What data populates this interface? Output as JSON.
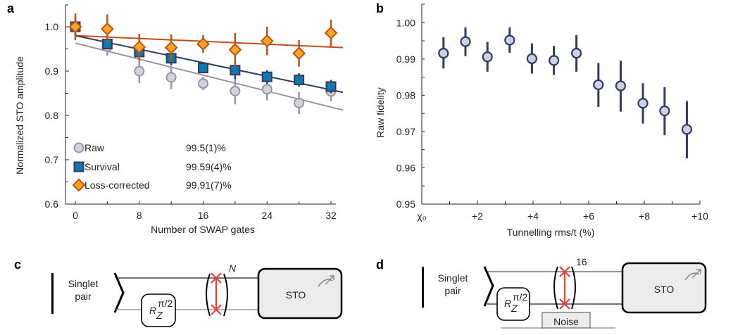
{
  "chart_data": [
    {
      "panel": "a",
      "type": "scatter",
      "xlabel": "Number of SWAP gates",
      "ylabel": "Normalized STO amplitude",
      "xlim": [
        -2,
        34
      ],
      "ylim": [
        0.6,
        1.05
      ],
      "xticks": [
        0,
        8,
        16,
        24,
        32
      ],
      "xtick_labels": [
        "0",
        "8",
        "16",
        "24",
        "32"
      ],
      "yticks": [
        0.6,
        0.7,
        0.8,
        0.9,
        1.0
      ],
      "ytick_labels": [
        "0.6",
        "0.7",
        "0.8",
        "0.9",
        "1.0"
      ],
      "grid": false,
      "legend_position": "bottom-left",
      "series": [
        {
          "name": "Raw",
          "marker": "circle",
          "value_label": "99.5(1)%",
          "color": "#d3d3d6",
          "edge_color": "#9496a6",
          "x": [
            0,
            4,
            8,
            12,
            16,
            20,
            24,
            28,
            32
          ],
          "y": [
            1.0,
            0.955,
            0.9,
            0.886,
            0.872,
            0.855,
            0.859,
            0.828,
            0.854
          ],
          "err": [
            0.025,
            0.02,
            0.027,
            0.027,
            0.015,
            0.03,
            0.025,
            0.025,
            0.022
          ],
          "fit": {
            "x": [
              0,
              33.5
            ],
            "y": [
              0.963,
              0.812
            ],
            "color": "#9496a6"
          }
        },
        {
          "name": "Survival",
          "marker": "square",
          "value_label": "99.59(4)%",
          "color": "#0f78b0",
          "edge_color": "#333a5a",
          "x": [
            0,
            4,
            8,
            12,
            16,
            20,
            24,
            28,
            32
          ],
          "y": [
            1.0,
            0.961,
            0.943,
            0.929,
            0.907,
            0.902,
            0.887,
            0.88,
            0.865
          ],
          "err": [
            0.02,
            0.01,
            0.015,
            0.015,
            0.01,
            0.02,
            0.015,
            0.015,
            0.015
          ],
          "fit": {
            "x": [
              0,
              33.5
            ],
            "y": [
              0.98,
              0.852
            ],
            "color": "#333a5a"
          }
        },
        {
          "name": "Loss-corrected",
          "marker": "diamond",
          "value_label": "99.91(7)%",
          "color": "#f5a623",
          "edge_color": "#c0501a",
          "x": [
            0,
            4,
            8,
            12,
            16,
            20,
            24,
            28,
            32
          ],
          "y": [
            1.0,
            0.995,
            0.954,
            0.953,
            0.961,
            0.948,
            0.968,
            0.94,
            0.986
          ],
          "err": [
            0.03,
            0.033,
            0.03,
            0.03,
            0.02,
            0.038,
            0.032,
            0.03,
            0.03
          ],
          "fit": {
            "x": [
              0,
              33.5
            ],
            "y": [
              0.98,
              0.953
            ],
            "color": "#c0501a"
          }
        }
      ]
    },
    {
      "panel": "b",
      "type": "scatter",
      "xlabel": "Tunnelling rms/t (%)",
      "ylabel": "Raw fidelity",
      "xlim": [
        0,
        10
      ],
      "ylim": [
        0.95,
        1.005
      ],
      "xticks": [
        0,
        2,
        4,
        6,
        8,
        10
      ],
      "xtick_labels": [
        "χ₀",
        "+2",
        "+4",
        "+6",
        "+8",
        "+10"
      ],
      "yticks": [
        0.95,
        0.96,
        0.97,
        0.98,
        0.99,
        1.0
      ],
      "ytick_labels": [
        "0.95",
        "0.96",
        "0.97",
        "0.98",
        "0.99",
        "1.00"
      ],
      "grid": false,
      "series": [
        {
          "name": "Raw fidelity",
          "marker": "circle",
          "color": "#cfcfe6",
          "edge_color": "#333a5a",
          "x": [
            0.78,
            1.57,
            2.36,
            3.16,
            3.96,
            4.75,
            5.56,
            6.35,
            7.15,
            7.95,
            8.73,
            9.53
          ],
          "y": [
            0.9916,
            0.9948,
            0.9906,
            0.9952,
            0.9901,
            0.9896,
            0.9916,
            0.9829,
            0.9826,
            0.9778,
            0.9757,
            0.9706
          ],
          "y_low": [
            0.9874,
            0.9908,
            0.9865,
            0.9917,
            0.986,
            0.9856,
            0.9865,
            0.9768,
            0.9755,
            0.9722,
            0.969,
            0.9626
          ],
          "y_high": [
            0.996,
            0.9987,
            0.9947,
            0.9987,
            0.9943,
            0.9936,
            0.9966,
            0.9889,
            0.9895,
            0.9833,
            0.9822,
            0.9784
          ]
        }
      ]
    }
  ],
  "diagrams": {
    "c": {
      "panel": "c",
      "input_label_line1": "Singlet",
      "input_label_line2": "pair",
      "gate_base": "R",
      "gate_sub": "Z",
      "gate_sup": "π/2",
      "repeat_label": "N",
      "measure_label": "STO"
    },
    "d": {
      "panel": "d",
      "input_label_line1": "Singlet",
      "input_label_line2": "pair",
      "gate_base": "R",
      "gate_sub": "Z",
      "gate_sup": "π/2",
      "repeat_label": "16",
      "measure_label": "STO",
      "noise_label": "Noise"
    }
  },
  "colors": {
    "swap": "#e8413a",
    "box_fill": "#ececec",
    "wire_top": "#222222",
    "wire_bottom": "#888888"
  }
}
